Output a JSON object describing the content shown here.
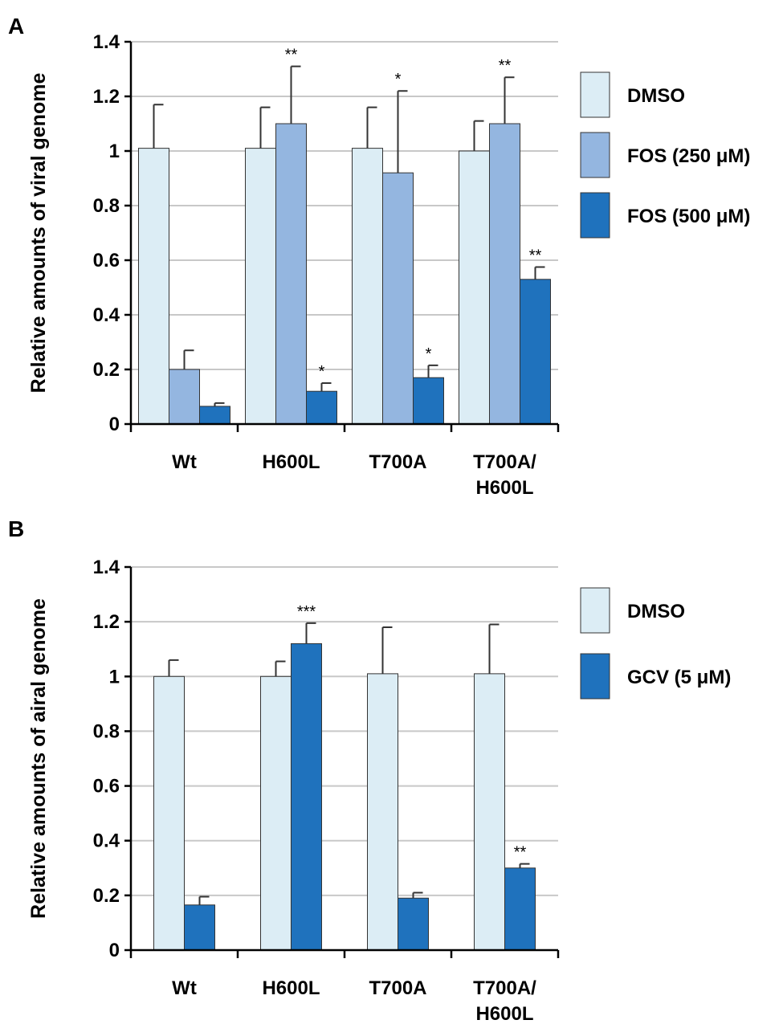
{
  "chart_data": [
    {
      "type": "bar",
      "panel": "A",
      "ylabel": "Relative amounts of viral genome",
      "ylim": [
        0,
        1.4
      ],
      "yticks": [
        "0",
        "0.2",
        "0.4",
        "0.6",
        "0.8",
        "1",
        "1.2",
        "1.4"
      ],
      "grid": true,
      "categories": [
        "Wt",
        "H600L",
        "T700A",
        "T700A/\nH600L"
      ],
      "series": [
        {
          "name": "DMSO",
          "color": "#dcedf5",
          "values": [
            1.01,
            1.01,
            1.01,
            1.0
          ],
          "errors": [
            0.16,
            0.15,
            0.15,
            0.11
          ],
          "sig": [
            "",
            "",
            "",
            ""
          ]
        },
        {
          "name": "FOS (250 μM)",
          "color": "#94b6e0",
          "values": [
            0.2,
            1.1,
            0.92,
            1.1
          ],
          "errors": [
            0.07,
            0.21,
            0.3,
            0.17
          ],
          "sig": [
            "",
            "**",
            "*",
            "**"
          ]
        },
        {
          "name": "FOS (500 μM)",
          "color": "#1f72bd",
          "values": [
            0.065,
            0.12,
            0.17,
            0.53
          ],
          "errors": [
            0.012,
            0.03,
            0.045,
            0.045
          ],
          "sig": [
            "",
            "*",
            "*",
            "**"
          ]
        }
      ],
      "legend": "right"
    },
    {
      "type": "bar",
      "panel": "B",
      "ylabel": "Relative amounts of airal genome",
      "ylim": [
        0,
        1.4
      ],
      "yticks": [
        "0",
        "0.2",
        "0.4",
        "0.6",
        "0.8",
        "1",
        "1.2",
        "1.4"
      ],
      "grid": true,
      "categories": [
        "Wt",
        "H600L",
        "T700A",
        "T700A/\nH600L"
      ],
      "series": [
        {
          "name": "DMSO",
          "color": "#dcedf5",
          "values": [
            1.0,
            1.0,
            1.01,
            1.01
          ],
          "errors": [
            0.06,
            0.055,
            0.17,
            0.18
          ],
          "sig": [
            "",
            "",
            "",
            ""
          ]
        },
        {
          "name": "GCV (5 μM)",
          "color": "#1f72bd",
          "values": [
            0.165,
            1.12,
            0.19,
            0.3
          ],
          "errors": [
            0.03,
            0.075,
            0.02,
            0.015
          ],
          "sig": [
            "",
            "***",
            "",
            "**"
          ]
        }
      ],
      "legend": "right"
    }
  ]
}
